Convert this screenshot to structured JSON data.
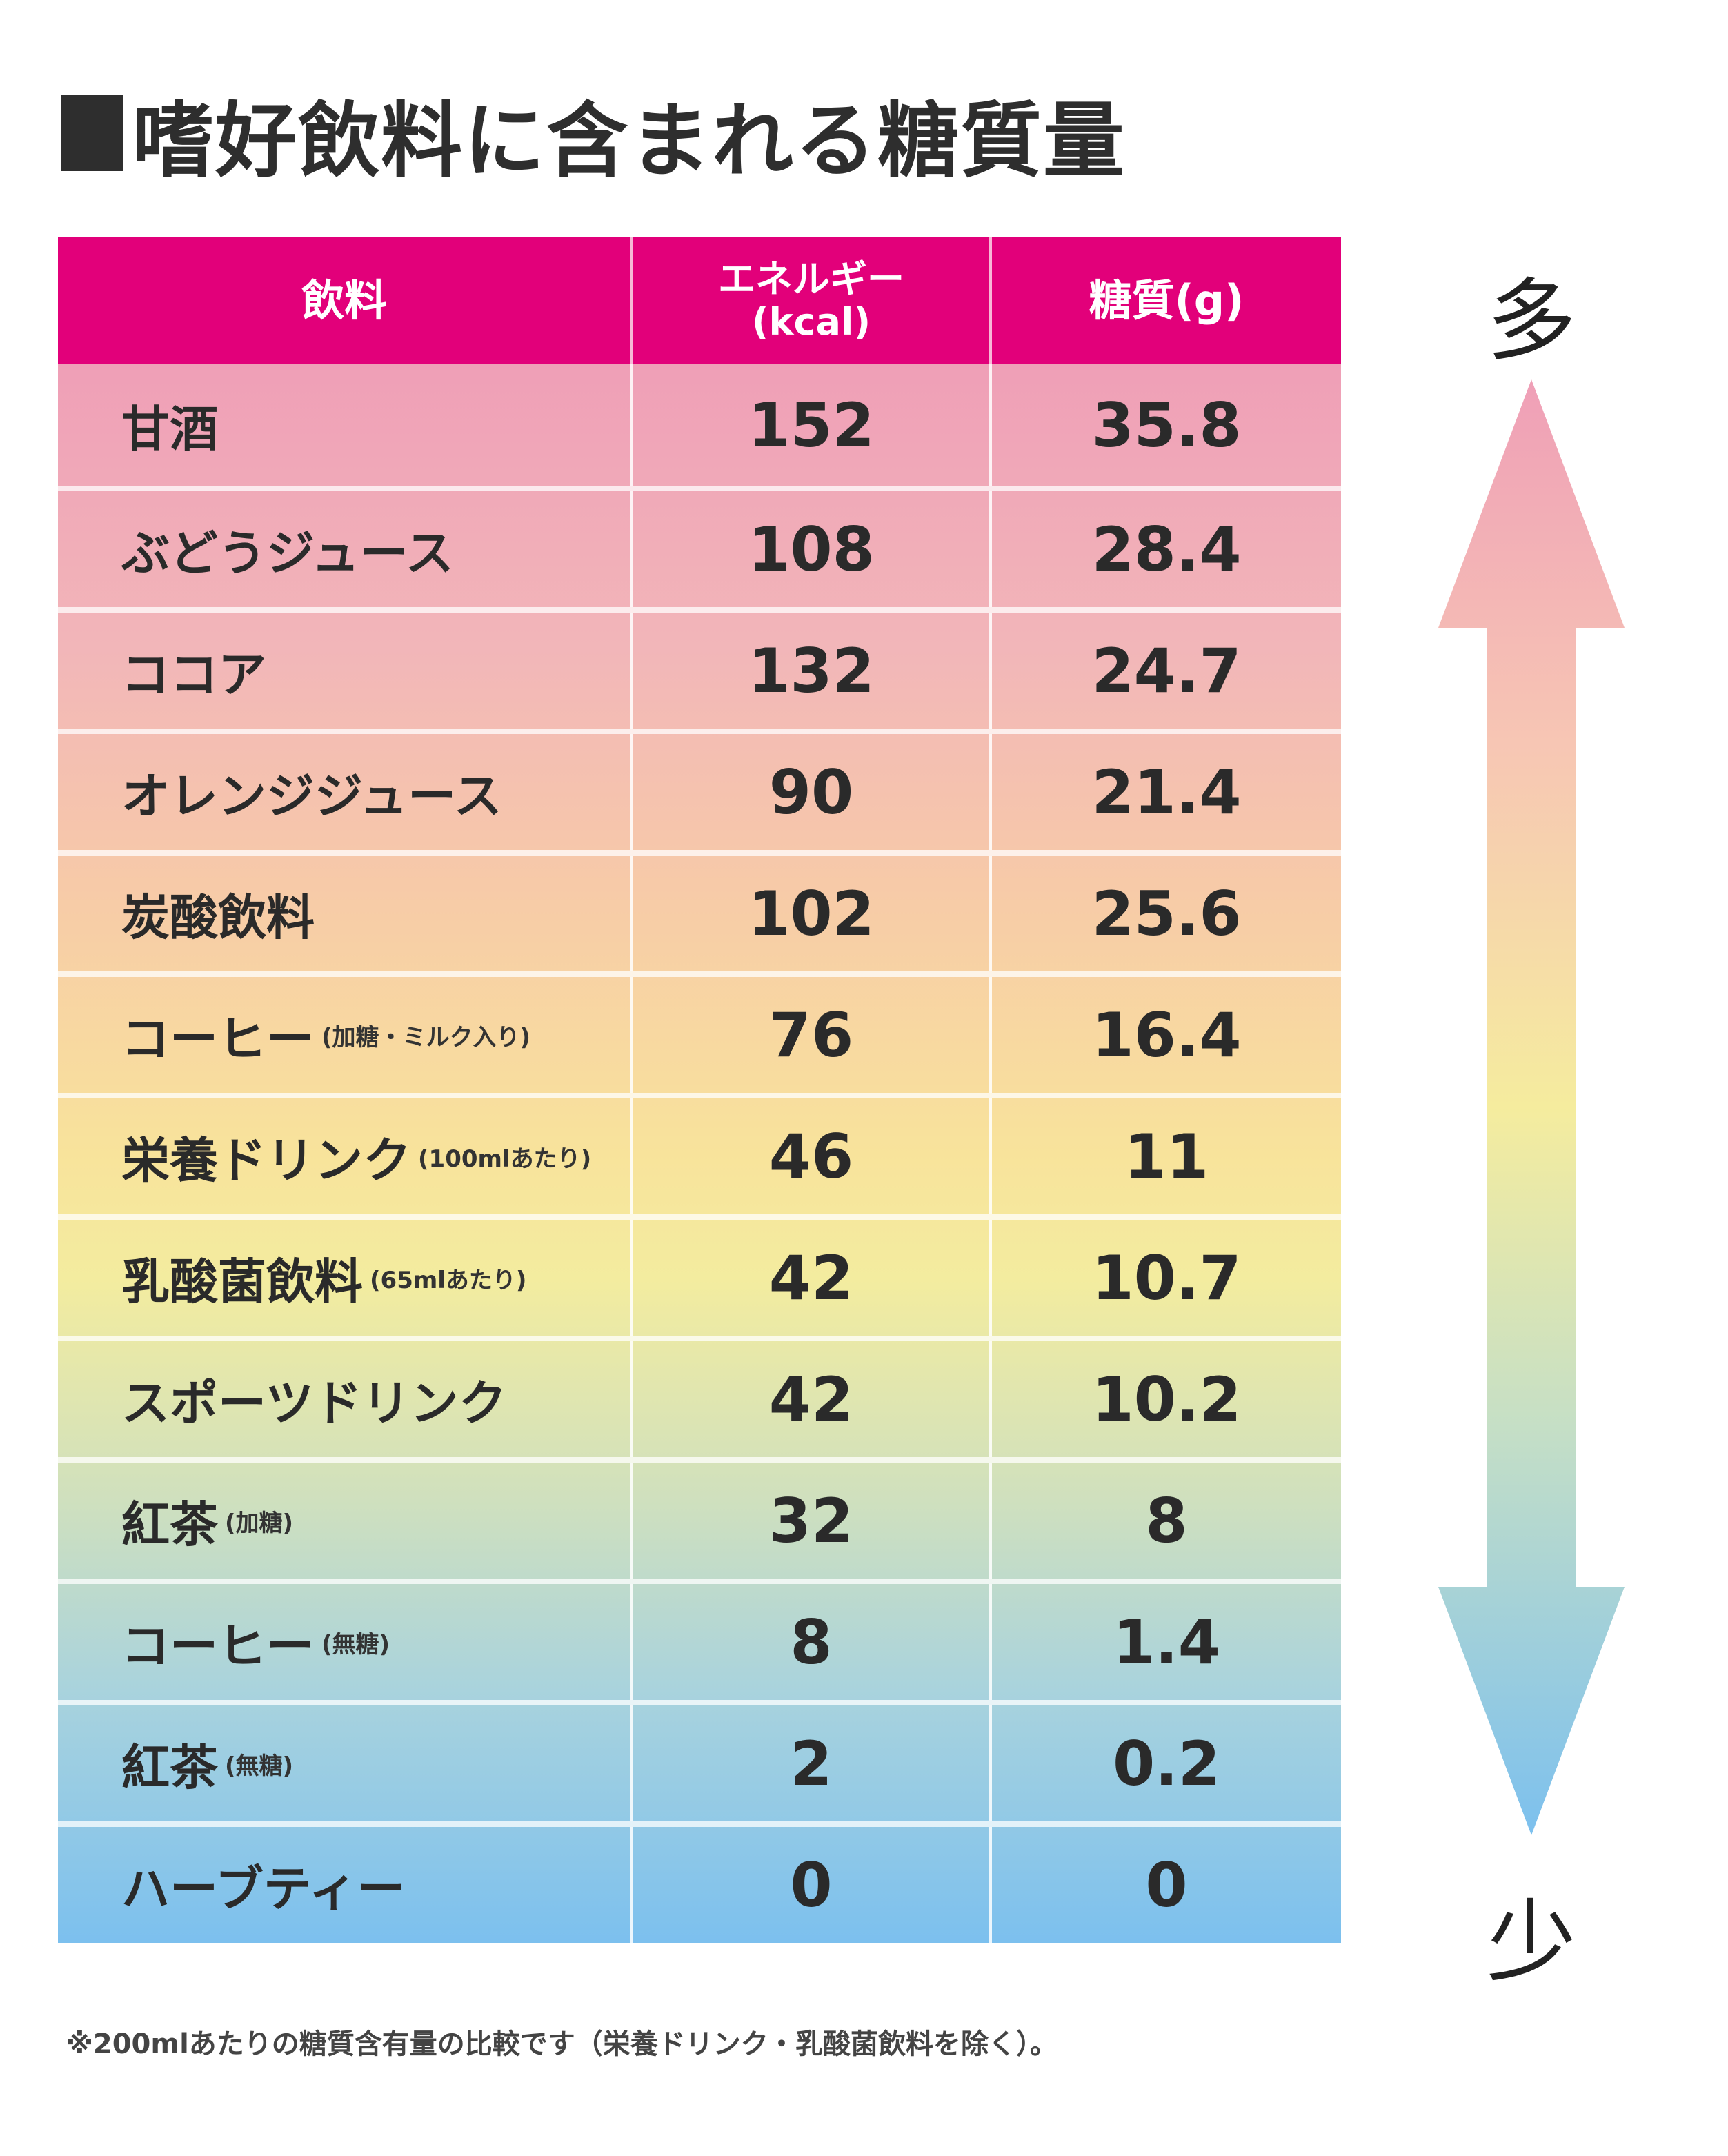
{
  "title": "嗜好飲料に含まれる糖質量",
  "table": {
    "headers": {
      "drink": "飲料",
      "energy_line1": "エネルギー",
      "energy_line2": "(kcal)",
      "sugar": "糖質(g)"
    },
    "rows": [
      {
        "name": "甘酒",
        "note": "",
        "kcal": "152",
        "sugar": "35.8"
      },
      {
        "name": "ぶどうジュース",
        "note": "",
        "kcal": "108",
        "sugar": "28.4"
      },
      {
        "name": "ココア",
        "note": "",
        "kcal": "132",
        "sugar": "24.7"
      },
      {
        "name": "オレンジジュース",
        "note": "",
        "kcal": "90",
        "sugar": "21.4"
      },
      {
        "name": "炭酸飲料",
        "note": "",
        "kcal": "102",
        "sugar": "25.6"
      },
      {
        "name": "コーヒー",
        "note": "(加糖・ミルク入り)",
        "kcal": "76",
        "sugar": "16.4"
      },
      {
        "name": "栄養ドリンク",
        "note": "(100mlあたり)",
        "kcal": "46",
        "sugar": "11"
      },
      {
        "name": "乳酸菌飲料",
        "note": "(65mlあたり)",
        "kcal": "42",
        "sugar": "10.7"
      },
      {
        "name": "スポーツドリンク",
        "note": "",
        "kcal": "42",
        "sugar": "10.2"
      },
      {
        "name": "紅茶",
        "note": "(加糖)",
        "kcal": "32",
        "sugar": "8"
      },
      {
        "name": "コーヒー",
        "note": "(無糖)",
        "kcal": "8",
        "sugar": "1.4"
      },
      {
        "name": "紅茶",
        "note": "(無糖)",
        "kcal": "2",
        "sugar": "0.2"
      },
      {
        "name": "ハーブティー",
        "note": "",
        "kcal": "0",
        "sugar": "0"
      }
    ]
  },
  "scale": {
    "top_label": "多",
    "bottom_label": "少",
    "top_color": "#ef9fb7",
    "bottom_color": "#7cc0ee"
  },
  "footnote": "※200mlあたりの糖質含有量の比較です（栄養ドリンク・乳酸菌飲料を除く）。",
  "colors": {
    "header": "#e2007a",
    "row_top": "#ef9fb7",
    "row_mid": "#f8e39b",
    "row_bottom": "#7cc0ee"
  },
  "chart_data": {
    "type": "table",
    "title": "嗜好飲料に含まれる糖質量",
    "columns": [
      "飲料",
      "エネルギー(kcal)",
      "糖質(g)"
    ],
    "categories": [
      "甘酒",
      "ぶどうジュース",
      "ココア",
      "オレンジジュース",
      "炭酸飲料",
      "コーヒー(加糖・ミルク入り)",
      "栄養ドリンク(100mlあたり)",
      "乳酸菌飲料(65mlあたり)",
      "スポーツドリンク",
      "紅茶(加糖)",
      "コーヒー(無糖)",
      "紅茶(無糖)",
      "ハーブティー"
    ],
    "series": [
      {
        "name": "エネルギー(kcal)",
        "values": [
          152,
          108,
          132,
          90,
          102,
          76,
          46,
          42,
          42,
          32,
          8,
          2,
          0
        ]
      },
      {
        "name": "糖質(g)",
        "values": [
          35.8,
          28.4,
          24.7,
          21.4,
          25.6,
          16.4,
          11,
          10.7,
          10.2,
          8,
          1.4,
          0.2,
          0
        ]
      }
    ],
    "annotations": [
      "多",
      "少",
      "※200mlあたりの糖質含有量の比較です（栄養ドリンク・乳酸菌飲料を除く）。"
    ]
  }
}
